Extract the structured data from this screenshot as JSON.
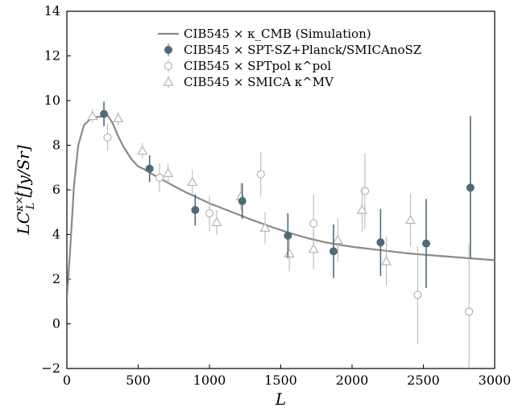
{
  "chart_data": {
    "type": "scatter",
    "xlabel": "L",
    "ylabel": "LC_L^{κ×I} [Jy/Sr]",
    "xlim": [
      0,
      3000
    ],
    "ylim": [
      -2,
      14
    ],
    "x_ticks": [
      0,
      500,
      1000,
      1500,
      2000,
      2500,
      3000
    ],
    "y_ticks": [
      -2,
      0,
      2,
      4,
      6,
      8,
      10,
      12,
      14
    ],
    "x_tick_labels": [
      "0",
      "500",
      "1000",
      "1500",
      "2000",
      "2500",
      "3000"
    ],
    "y_tick_labels": [
      "−2",
      "0",
      "2",
      "4",
      "6",
      "8",
      "10",
      "12",
      "14"
    ],
    "grid": false,
    "legend_position": "top-right",
    "colors": {
      "simulation": "#8a8a8a",
      "sptsz": "#4f6b7a",
      "sptpol": "#b4b4b4",
      "smica": "#b4b4b4"
    },
    "series": [
      {
        "name": "CIB545 × κ_CMB (Simulation)",
        "legend_label": "CIB545 × κ_CMB (Simulation)",
        "kind": "line",
        "x": [
          0,
          25,
          50,
          80,
          120,
          160,
          200,
          250,
          280,
          320,
          360,
          400,
          450,
          500,
          550,
          600,
          700,
          800,
          900,
          1000,
          1100,
          1200,
          1300,
          1400,
          1500,
          1600,
          1700,
          1800,
          1900,
          2000,
          2200,
          2400,
          2600,
          2800,
          3000
        ],
        "y": [
          1.1,
          3.5,
          6.2,
          8.0,
          8.9,
          9.15,
          9.25,
          9.3,
          9.4,
          9.0,
          8.4,
          7.9,
          7.4,
          7.05,
          6.9,
          6.7,
          6.35,
          6.0,
          5.7,
          5.4,
          5.15,
          4.9,
          4.65,
          4.42,
          4.2,
          4.0,
          3.82,
          3.67,
          3.55,
          3.45,
          3.3,
          3.15,
          3.05,
          2.95,
          2.85
        ]
      },
      {
        "name": "CIB545 × SPT-SZ+Planck/SMICAnoSZ",
        "legend_label": "CIB545 × SPT-SZ+Planck/SMICAnoSZ",
        "kind": "points",
        "marker": "filled-circle",
        "x": [
          260,
          580,
          900,
          1230,
          1550,
          1870,
          2200,
          2520,
          2830
        ],
        "y": [
          9.4,
          6.95,
          5.1,
          5.5,
          3.95,
          3.25,
          3.65,
          3.6,
          6.1
        ],
        "err": [
          0.55,
          0.6,
          0.7,
          0.8,
          1.0,
          1.2,
          1.5,
          2.0,
          3.2
        ]
      },
      {
        "name": "CIB545 × SPTpol κ^pol",
        "legend_label": "CIB545 × SPTpol κ^pol",
        "kind": "points",
        "marker": "open-circle",
        "x": [
          285,
          650,
          1000,
          1360,
          1730,
          2090,
          2460,
          2820
        ],
        "y": [
          8.35,
          6.55,
          4.95,
          6.7,
          4.5,
          5.95,
          1.3,
          0.55
        ],
        "err": [
          0.6,
          0.65,
          0.8,
          1.0,
          1.3,
          1.7,
          2.2,
          3.0
        ]
      },
      {
        "name": "CIB545 × SMICA κ^MV",
        "legend_label": "CIB545 × SMICA κ^MV",
        "kind": "points",
        "marker": "open-triangle",
        "x": [
          180,
          360,
          530,
          710,
          880,
          1050,
          1220,
          1390,
          1560,
          1730,
          1900,
          2070,
          2240,
          2410
        ],
        "y": [
          9.3,
          9.2,
          7.75,
          6.75,
          6.35,
          4.55,
          5.7,
          4.3,
          3.15,
          3.35,
          3.75,
          5.1,
          2.8,
          4.65
        ],
        "err": [
          0.3,
          0.3,
          0.35,
          0.45,
          0.55,
          0.55,
          0.6,
          0.7,
          0.8,
          0.9,
          1.0,
          1.0,
          1.1,
          1.2
        ]
      }
    ]
  }
}
